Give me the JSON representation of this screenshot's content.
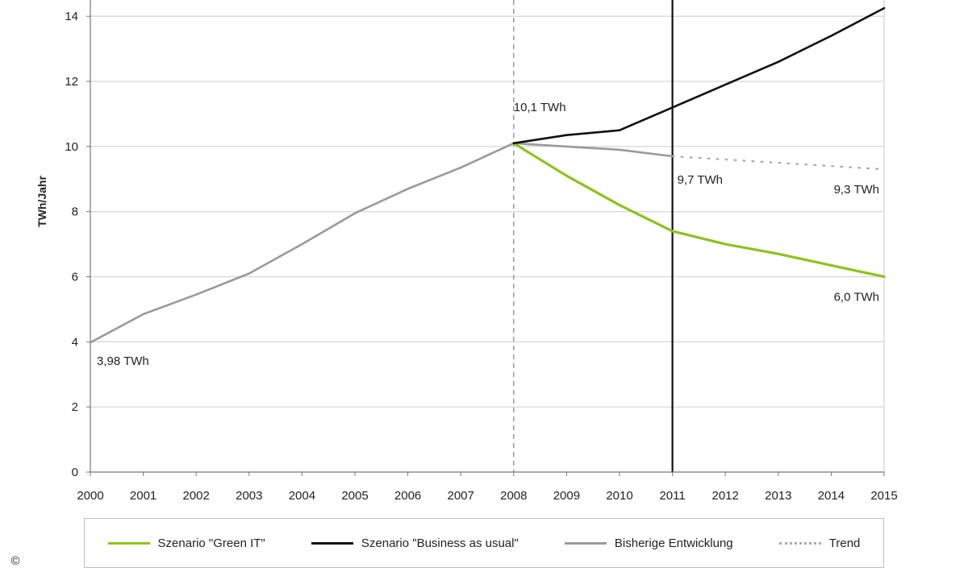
{
  "chart_data": {
    "type": "line",
    "title": "",
    "xlabel": "",
    "ylabel": "TWh/Jahr",
    "x": [
      "2000",
      "2001",
      "2002",
      "2003",
      "2004",
      "2005",
      "2006",
      "2007",
      "2008",
      "2009",
      "2010",
      "2011",
      "2012",
      "2013",
      "2014",
      "2015"
    ],
    "xlim": [
      2000,
      2015
    ],
    "ylim": [
      0,
      14
    ],
    "yticks": [
      0,
      2,
      4,
      6,
      8,
      10,
      12,
      14
    ],
    "grid": true,
    "legend_position": "bottom",
    "series": [
      {
        "name": "Szenario \"Green IT\"",
        "color": "#8dc21f",
        "style": "solid",
        "points": [
          [
            2008,
            10.1
          ],
          [
            2009,
            9.1
          ],
          [
            2010,
            8.2
          ],
          [
            2011,
            7.4
          ],
          [
            2012,
            7.0
          ],
          [
            2013,
            6.7
          ],
          [
            2014,
            6.35
          ],
          [
            2015,
            6.0
          ]
        ]
      },
      {
        "name": "Szenario \"Business as usual\"",
        "color": "#111111",
        "style": "solid",
        "points": [
          [
            2008,
            10.1
          ],
          [
            2009,
            10.35
          ],
          [
            2010,
            10.5
          ],
          [
            2011,
            11.2
          ],
          [
            2012,
            11.9
          ],
          [
            2013,
            12.6
          ],
          [
            2014,
            13.4
          ],
          [
            2015,
            14.25
          ]
        ]
      },
      {
        "name": "Bisherige Entwicklung",
        "color": "#9a9a9a",
        "style": "solid",
        "points": [
          [
            2000,
            3.98
          ],
          [
            2001,
            4.85
          ],
          [
            2002,
            5.45
          ],
          [
            2003,
            6.1
          ],
          [
            2004,
            7.0
          ],
          [
            2005,
            7.95
          ],
          [
            2006,
            8.7
          ],
          [
            2007,
            9.35
          ],
          [
            2008,
            10.1
          ],
          [
            2009,
            10.0
          ],
          [
            2010,
            9.9
          ],
          [
            2011,
            9.7
          ]
        ]
      },
      {
        "name": "Trend",
        "color": "#aaaaaa",
        "style": "dotted",
        "points": [
          [
            2011,
            9.7
          ],
          [
            2015,
            9.3
          ]
        ]
      }
    ],
    "reference_lines": [
      {
        "x": 2008,
        "style": "dashed",
        "color": "#888888"
      },
      {
        "x": 2011,
        "style": "solid",
        "color": "#111111"
      }
    ],
    "annotations": [
      {
        "text": "10,1 TWh",
        "x": 2008,
        "y": 10.1
      },
      {
        "text": "9,7 TWh",
        "x": 2011,
        "y": 9.7
      },
      {
        "text": "9,3 TWh",
        "x": 2015,
        "y": 9.3
      },
      {
        "text": "6,0 TWh",
        "x": 2015,
        "y": 6.0
      },
      {
        "text": "3,98 TWh",
        "x": 2000,
        "y": 3.98
      }
    ]
  },
  "copyright_symbol": "©"
}
